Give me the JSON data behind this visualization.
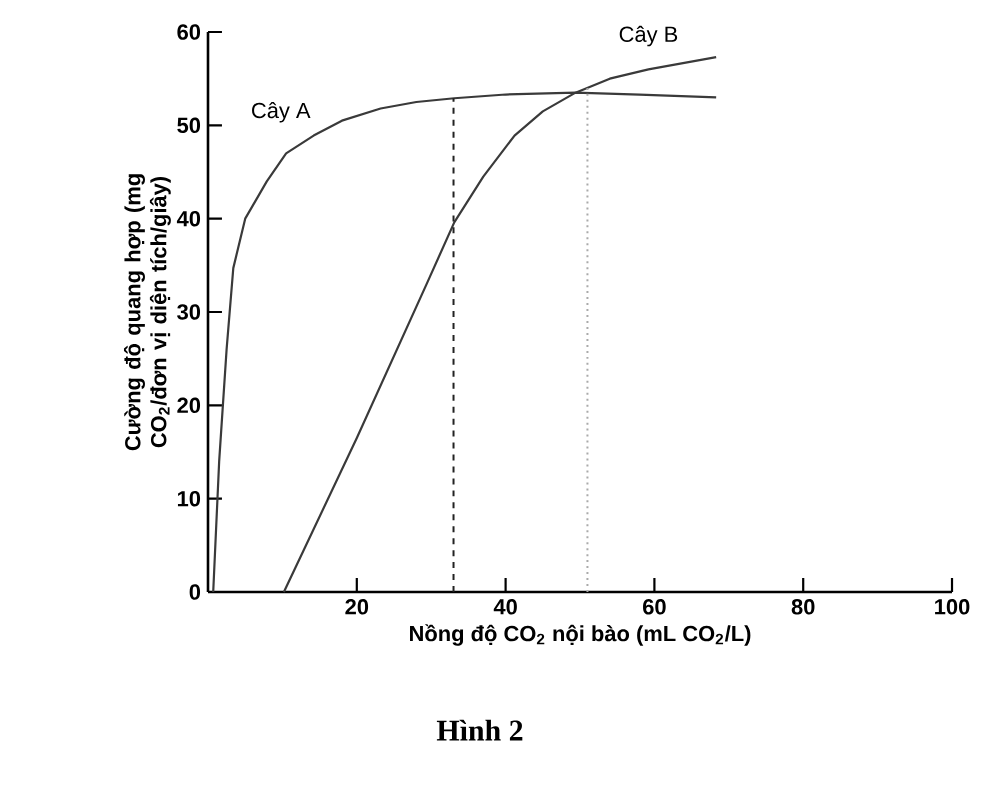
{
  "chart_data": {
    "type": "line",
    "xlabel": "Nồng độ CO$_{2}$ nội bào (mL CO$_{2}$/L)",
    "ylabel": "Cường độ quang hợp (mg CO$_{2}$/đơn vị diện tích/giây)",
    "annotations": [
      "Hình 2"
    ],
    "series": [
      {
        "name": "Cây A",
        "color": "#3a3a3a",
        "x": [
          0.7,
          1.5,
          2.5,
          3.4,
          5,
          7.9,
          10.5,
          14.2,
          18,
          23.2,
          28,
          33.1,
          40,
          49.4,
          58,
          68.3
        ],
        "values": [
          0,
          14,
          26,
          34.7,
          40,
          44,
          47,
          48.9,
          50.5,
          51.8,
          52.5,
          52.9,
          53.3,
          53.5,
          53.3,
          53.0
        ]
      },
      {
        "name": "Cây B",
        "color": "#3a3a3a",
        "x": [
          10.2,
          20,
          29.5,
          33.1,
          37,
          41.2,
          45,
          49.4,
          54,
          59.2,
          68.3
        ],
        "values": [
          0,
          16.5,
          33.2,
          39.6,
          44.5,
          48.9,
          51.5,
          53.5,
          55,
          56,
          57.3
        ]
      }
    ],
    "xlim": [
      0,
      100
    ],
    "ylim": [
      0,
      60
    ],
    "xticks": [
      20,
      40,
      60,
      80,
      100
    ],
    "yticks": [
      0,
      10,
      20,
      30,
      40,
      50,
      60
    ],
    "ref_lines": [
      {
        "axis": "x",
        "value": 33,
        "color": "#222222",
        "line_style": "dashed"
      },
      {
        "axis": "x",
        "value": 51,
        "color": "#aaaaaa",
        "line_style": "dotted"
      }
    ],
    "grid": false,
    "marker": "none",
    "line_style": "solid"
  }
}
